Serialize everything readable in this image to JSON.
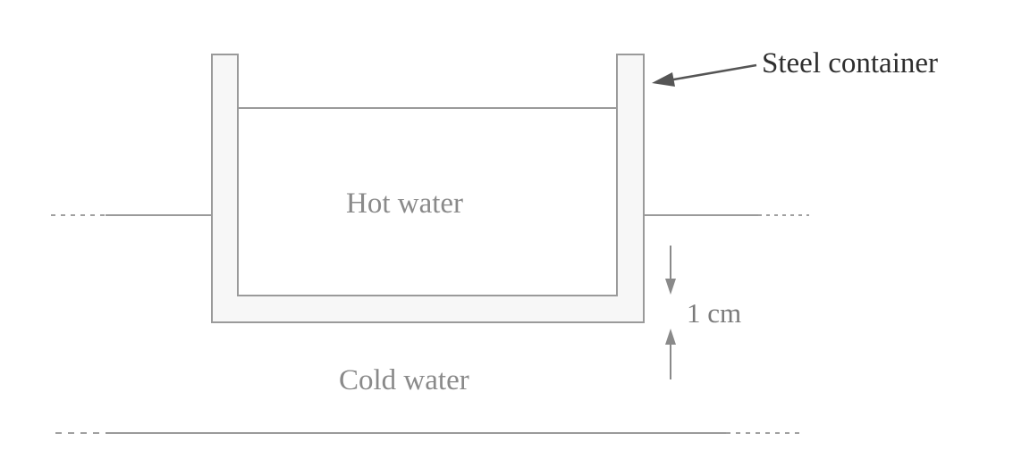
{
  "labels": {
    "container": "Steel container",
    "hot_water": "Hot water",
    "cold_water": "Cold water",
    "wall_thickness": "1 cm"
  },
  "colors": {
    "line": "#9a9a9a",
    "container_fill": "#f7f7f7",
    "arrow": "#555555",
    "text": "#8a8a8a"
  }
}
